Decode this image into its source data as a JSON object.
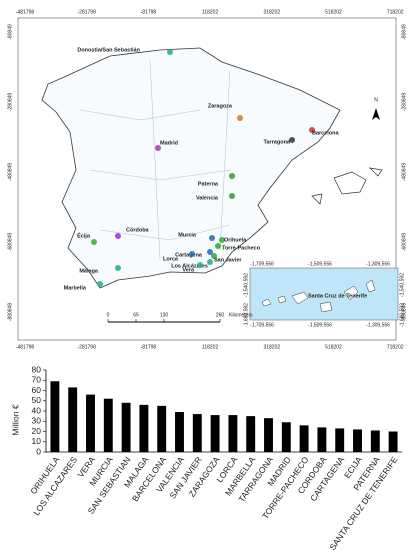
{
  "map": {
    "xticks": [
      -481798,
      -281798,
      -81798,
      118202,
      318202,
      518202,
      718202
    ],
    "yticks": [
      -80849,
      -280849,
      -480849,
      -680849,
      -880849
    ],
    "cities": [
      "Donostia/San Sebastián",
      "Zaragoza",
      "Barcelona",
      "Tarragona",
      "Madrid",
      "Paterna",
      "Valencia",
      "Murcia",
      "Orihuela",
      "Torre-Pacheco",
      "Cartagena",
      "San Javier",
      "Los Alcázares",
      "Córdoba",
      "Écija",
      "Lorca",
      "Vera",
      "Málaga",
      "Marbella"
    ],
    "north": "N",
    "scale": {
      "ticks": [
        0,
        65,
        130,
        260
      ],
      "unit": "Kilometers"
    },
    "inset": {
      "name": "Santa Cruz de Tenerife",
      "xticks": [
        {
          "value": -1709556,
          "label": "-1,709,556"
        },
        {
          "value": -1509556,
          "label": "-1,509,556"
        },
        {
          "value": -1309556,
          "label": "-1,309,556"
        }
      ],
      "yticks": [
        {
          "value": -1540592,
          "label": "-1,540,592"
        },
        {
          "value": -1680592,
          "label": "-1,680,592"
        }
      ]
    }
  },
  "chart_data": {
    "type": "bar",
    "ylabel": "Million €",
    "categories": [
      "ORIHUELA",
      "LOS ALCAZARES",
      "VERA",
      "MURCIA",
      "SAN SEBASTIAN",
      "MALAGA",
      "BARCELONA",
      "VALENCIA",
      "SAN JAVIER",
      "ZARAGOZA",
      "LORCA",
      "MARBELLA",
      "TARRAGONA",
      "MADRID",
      "TORRE-PACHECO",
      "CORDOBA",
      "CARTAGENA",
      "ECIJA",
      "PATERNA",
      "SANTA CRUZ DE TENERIFE"
    ],
    "values": [
      69,
      63,
      56,
      52,
      48,
      46,
      45,
      39,
      37,
      36,
      36,
      35,
      33,
      29,
      26,
      24,
      23,
      22,
      21,
      20
    ],
    "color": "#000000",
    "ylim": [
      0,
      80
    ],
    "yticks": [
      0,
      10,
      20,
      30,
      40,
      50,
      60,
      70,
      80
    ]
  }
}
